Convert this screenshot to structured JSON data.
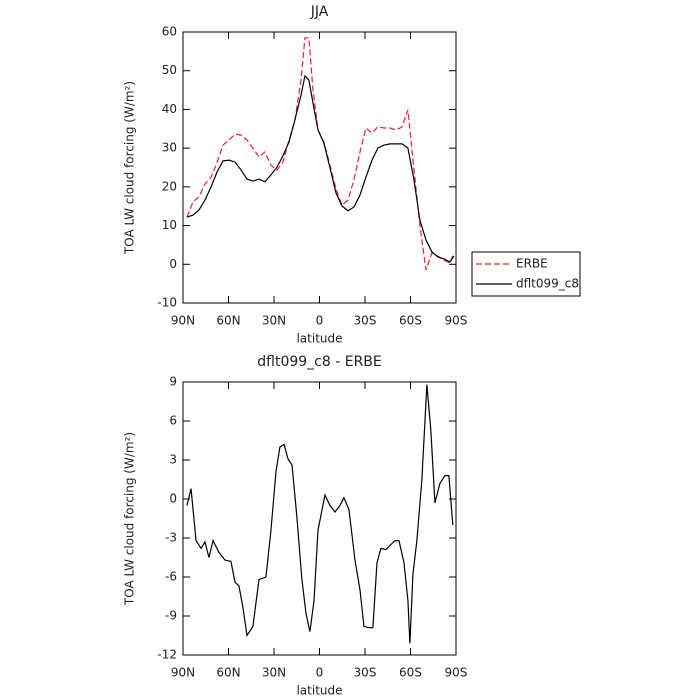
{
  "chart_data": [
    {
      "type": "line",
      "title": "JJA",
      "xlabel": "latitude",
      "ylabel": "TOA LW cloud forcing (W/m²)",
      "x": [
        87.4,
        83.4,
        79.5,
        75.5,
        71.5,
        67.6,
        63.6,
        59.7,
        55.7,
        51.8,
        47.8,
        43.9,
        39.9,
        36.0,
        32.0,
        28.0,
        24.1,
        20.1,
        16.2,
        12.2,
        9.6,
        7.0,
        4.3,
        1.0,
        -2.9,
        -6.9,
        -10.9,
        -14.8,
        -18.8,
        -22.7,
        -26.7,
        -30.6,
        -34.6,
        -38.5,
        -42.5,
        -46.5,
        -50.4,
        -54.4,
        -58.3,
        -62.3,
        -66.2,
        -70.2,
        -74.1,
        -78.1,
        -82.1,
        -86.0,
        -88.6
      ],
      "series": [
        {
          "name": "ERBE",
          "color": "#e8202a",
          "linestyle": "dashed",
          "values": [
            12.2,
            16.1,
            17.4,
            20.7,
            22.5,
            26.2,
            30.8,
            32.1,
            33.6,
            33.4,
            32.1,
            30.0,
            27.7,
            29.0,
            25.6,
            24.3,
            26.4,
            32.1,
            37.3,
            47.6,
            58.5,
            58.5,
            45.0,
            34.7,
            31.6,
            25.6,
            19.4,
            15.3,
            16.6,
            21.8,
            29.0,
            35.2,
            33.9,
            35.5,
            35.2,
            35.2,
            34.7,
            35.5,
            39.9,
            24.4,
            10.1,
            -1.5,
            2.9,
            2.1,
            1.1,
            0.3,
            2.9
          ]
        },
        {
          "name": "dflt099_c8",
          "color": "#000000",
          "linestyle": "solid",
          "values": [
            12.2,
            12.7,
            14.0,
            16.6,
            20.0,
            23.8,
            26.7,
            26.9,
            26.4,
            24.4,
            22.0,
            21.5,
            22.0,
            21.3,
            23.1,
            25.1,
            28.0,
            31.6,
            37.3,
            43.7,
            48.6,
            47.6,
            41.7,
            34.7,
            31.3,
            24.9,
            18.4,
            15.1,
            13.8,
            14.8,
            17.9,
            22.5,
            26.9,
            30.0,
            30.8,
            31.1,
            31.1,
            31.1,
            30.0,
            21.8,
            11.4,
            6.3,
            3.2,
            1.9,
            1.4,
            0.6,
            2.1
          ]
        }
      ],
      "xlim": [
        90,
        -90
      ],
      "xticks": [
        {
          "value": 90,
          "label": "90N"
        },
        {
          "value": 60,
          "label": "60N"
        },
        {
          "value": 30,
          "label": "30N"
        },
        0,
        {
          "value": -30,
          "label": "30S"
        },
        {
          "value": -60,
          "label": "60S"
        },
        {
          "value": -90,
          "label": "90S"
        }
      ],
      "ylim": [
        -10,
        60
      ],
      "yticks": [
        -10,
        0,
        10,
        20,
        30,
        40,
        50,
        60
      ],
      "legend": "right"
    },
    {
      "type": "line",
      "title": "dflt099_c8 - ERBE",
      "xlabel": "latitude",
      "ylabel": "TOA LW cloud forcing (W/m²)",
      "x": [
        87.4,
        84.7,
        81.4,
        78.1,
        75.5,
        72.9,
        70.2,
        66.3,
        62.3,
        58.4,
        55.7,
        53.1,
        50.4,
        47.8,
        43.9,
        39.9,
        35.3,
        32.0,
        28.7,
        26.1,
        23.4,
        20.8,
        18.1,
        14.9,
        11.6,
        8.9,
        6.3,
        3.6,
        1.0,
        -3.6,
        -6.9,
        -10.2,
        -13.5,
        -16.1,
        -19.4,
        -23.4,
        -26.7,
        -29.3,
        -32.6,
        -35.2,
        -37.9,
        -40.5,
        -43.8,
        -47.1,
        -49.7,
        -52.4,
        -55.7,
        -58.3,
        -59.6,
        -61.6,
        -64.2,
        -67.5,
        -70.8,
        -73.4,
        -76.1,
        -79.4,
        -82.7,
        -85.3,
        -87.9
      ],
      "series": [
        {
          "name": "dflt099_c8 - ERBE",
          "color": "#000000",
          "linestyle": "solid",
          "values": [
            -0.5,
            0.8,
            -3.2,
            -3.8,
            -3.3,
            -4.5,
            -3.2,
            -4.1,
            -4.7,
            -4.8,
            -6.4,
            -6.7,
            -8.4,
            -10.5,
            -9.8,
            -6.2,
            -6.0,
            -2.4,
            2.1,
            4.0,
            4.2,
            3.1,
            2.6,
            -1.4,
            -6.2,
            -8.8,
            -10.2,
            -7.8,
            -2.4,
            0.3,
            -0.5,
            -1.0,
            -0.5,
            0.1,
            -0.8,
            -4.7,
            -7.0,
            -9.8,
            -9.9,
            -9.9,
            -4.9,
            -3.8,
            -3.9,
            -3.5,
            -3.2,
            -3.2,
            -4.9,
            -7.8,
            -11.1,
            -5.8,
            -3.2,
            1.5,
            8.8,
            5.3,
            -0.3,
            1.2,
            1.8,
            1.8,
            -2.0
          ]
        }
      ],
      "xlim": [
        90,
        -90
      ],
      "xticks": [
        {
          "value": 90,
          "label": "90N"
        },
        {
          "value": 60,
          "label": "60N"
        },
        {
          "value": 30,
          "label": "30N"
        },
        0,
        {
          "value": -30,
          "label": "30S"
        },
        {
          "value": -60,
          "label": "60S"
        },
        {
          "value": -90,
          "label": "90S"
        }
      ],
      "ylim": [
        -12,
        9
      ],
      "yticks": [
        -12,
        -9,
        -6,
        -3,
        0,
        3,
        6,
        9
      ]
    }
  ]
}
